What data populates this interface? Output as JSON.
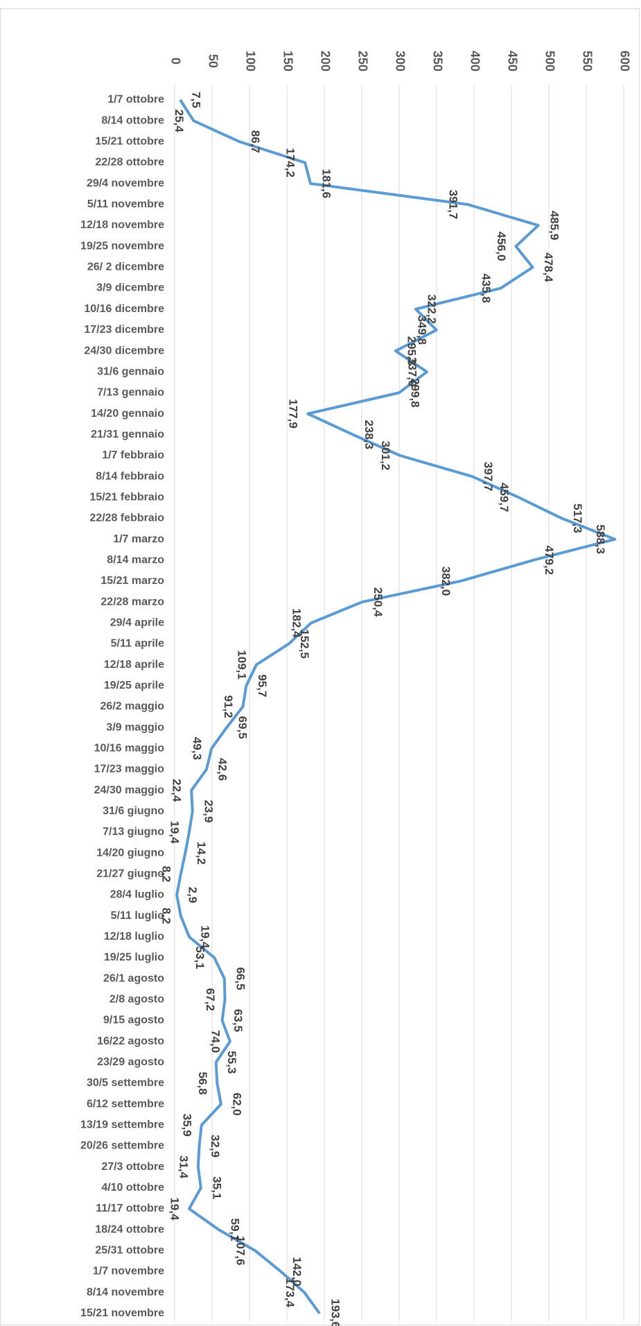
{
  "chart_data": {
    "type": "line",
    "orientation": "vertical",
    "categories": [
      "1/7 ottobre",
      "8/14 ottobre",
      "15/21 ottobre",
      "22/28 ottobre",
      "29/4 novembre",
      "5/11 novembre",
      "12/18 novembre",
      "19/25 novembre",
      "26/ 2 dicembre",
      "3/9 dicembre",
      "10/16 dicembre",
      "17/23 dicembre",
      "24/30 dicembre",
      "31/6 gennaio",
      "7/13 gennaio",
      "14/20 gennaio",
      "21/31 gennaio",
      "1/7 febbraio",
      "8/14 febbraio",
      "15/21 febbraio",
      "22/28 febbraio",
      "1/7 marzo",
      "8/14 marzo",
      "15/21 marzo",
      "22/28 marzo",
      "29/4 aprile",
      "5/11 aprile",
      "12/18 aprile",
      "19/25 aprile",
      "26/2 maggio",
      "3/9 maggio",
      "10/16 maggio",
      "17/23 maggio",
      "24/30 maggio",
      "31/6 giugno",
      "7/13 giugno",
      "14/20 giugno",
      "21/27 giugno",
      "28/4 luglio",
      "5/11 luglio",
      "12/18 luglio",
      "19/25 luglio",
      "26/1 agosto",
      "2/8 agosto",
      "9/15 agosto",
      "16/22 agosto",
      "23/29 agosto",
      "30/5 settembre",
      "6/12 settembre",
      "13/19 settembre",
      "20/26 settembre",
      "27/3 ottobre",
      "4/10 ottobre",
      "11/17 ottobre",
      "18/24 ottobre",
      "25/31 ottobre",
      "1/7 novembre",
      "8/14 novembre",
      "15/21 novembre"
    ],
    "values": [
      7.5,
      25.4,
      86.7,
      174.2,
      181.6,
      391.7,
      485.9,
      456.0,
      478.4,
      435.8,
      322.2,
      349.8,
      295.3,
      337.0,
      299.8,
      177.9,
      238.3,
      301.2,
      397.7,
      459.7,
      517.3,
      588.3,
      479.2,
      382.0,
      250.4,
      182.4,
      152.5,
      109.1,
      95.7,
      91.2,
      69.5,
      49.3,
      42.6,
      22.4,
      23.9,
      19.4,
      14.2,
      8.2,
      2.9,
      8.2,
      19.4,
      53.1,
      66.5,
      67.2,
      63.5,
      74.0,
      55.3,
      56.8,
      62.0,
      35.9,
      32.9,
      31.4,
      35.1,
      19.4,
      59.1,
      107.6,
      142.0,
      173.4,
      193.6
    ],
    "value_labels": [
      "7,5",
      "25,4",
      "86,7",
      "174,2",
      "181,6",
      "391,7",
      "485,9",
      "456,0",
      "478,4",
      "435,8",
      "322,2",
      "349,8",
      "295,3",
      "337,0",
      "299,8",
      "177,9",
      "238,3",
      "301,2",
      "397,7",
      "459,7",
      "517,3",
      "588,3",
      "479,2",
      "382,0",
      "250,4",
      "182,4",
      "152,5",
      "109,1",
      "95,7",
      "91,2",
      "69,5",
      "49,3",
      "42,6",
      "22,4",
      "23,9",
      "19,4",
      "14,2",
      "8,2",
      "2,9",
      "8,2",
      "19,4",
      "53,1",
      "66,5",
      "67,2",
      "63,5",
      "74,0",
      "55,3",
      "56,8",
      "62,0",
      "35,9",
      "32,9",
      "31,4",
      "35,1",
      "19,4",
      "59,1",
      "107,6",
      "142,0",
      "173,4",
      "193,6"
    ],
    "color": "#5b9bd5",
    "ylim": [
      0,
      600
    ],
    "yticks": [
      0,
      50,
      100,
      150,
      200,
      250,
      300,
      350,
      400,
      450,
      500,
      550,
      600
    ],
    "grid": true
  }
}
